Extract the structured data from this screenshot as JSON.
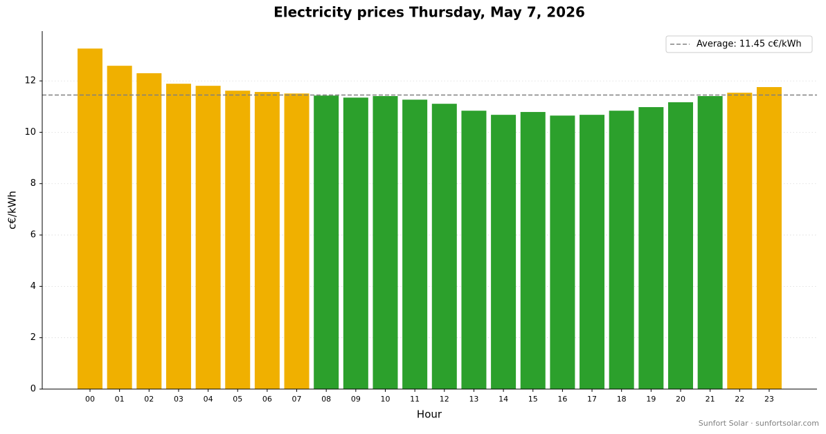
{
  "chart_data": {
    "type": "bar",
    "title": "Electricity prices Thursday, May 7, 2026",
    "x_label": "Hour",
    "y_label": "c€/kWh",
    "categories": [
      "00",
      "01",
      "02",
      "03",
      "04",
      "05",
      "06",
      "07",
      "08",
      "09",
      "10",
      "11",
      "12",
      "13",
      "14",
      "15",
      "16",
      "17",
      "18",
      "19",
      "20",
      "21",
      "22",
      "23"
    ],
    "values": [
      13.26,
      12.59,
      12.3,
      11.89,
      11.81,
      11.62,
      11.57,
      11.51,
      11.43,
      11.35,
      11.41,
      11.27,
      11.11,
      10.84,
      10.68,
      10.79,
      10.65,
      10.68,
      10.84,
      10.98,
      11.17,
      11.41,
      11.54,
      11.76
    ],
    "colors": [
      "#f0b000",
      "#f0b000",
      "#f0b000",
      "#f0b000",
      "#f0b000",
      "#f0b000",
      "#f0b000",
      "#f0b000",
      "#2ca02c",
      "#2ca02c",
      "#2ca02c",
      "#2ca02c",
      "#2ca02c",
      "#2ca02c",
      "#2ca02c",
      "#2ca02c",
      "#2ca02c",
      "#2ca02c",
      "#2ca02c",
      "#2ca02c",
      "#2ca02c",
      "#2ca02c",
      "#f0b000",
      "#f0b000"
    ],
    "average_line": {
      "value": 11.45,
      "label": "Average: 11.45 c€/kWh",
      "color": "#808080"
    },
    "ylim": [
      0,
      13.94
    ],
    "yticks": [
      0,
      2,
      4,
      6,
      8,
      10,
      12
    ],
    "grid": true,
    "legend": "upper right",
    "source": "Sunfort Solar · sunfortsolar.com"
  }
}
